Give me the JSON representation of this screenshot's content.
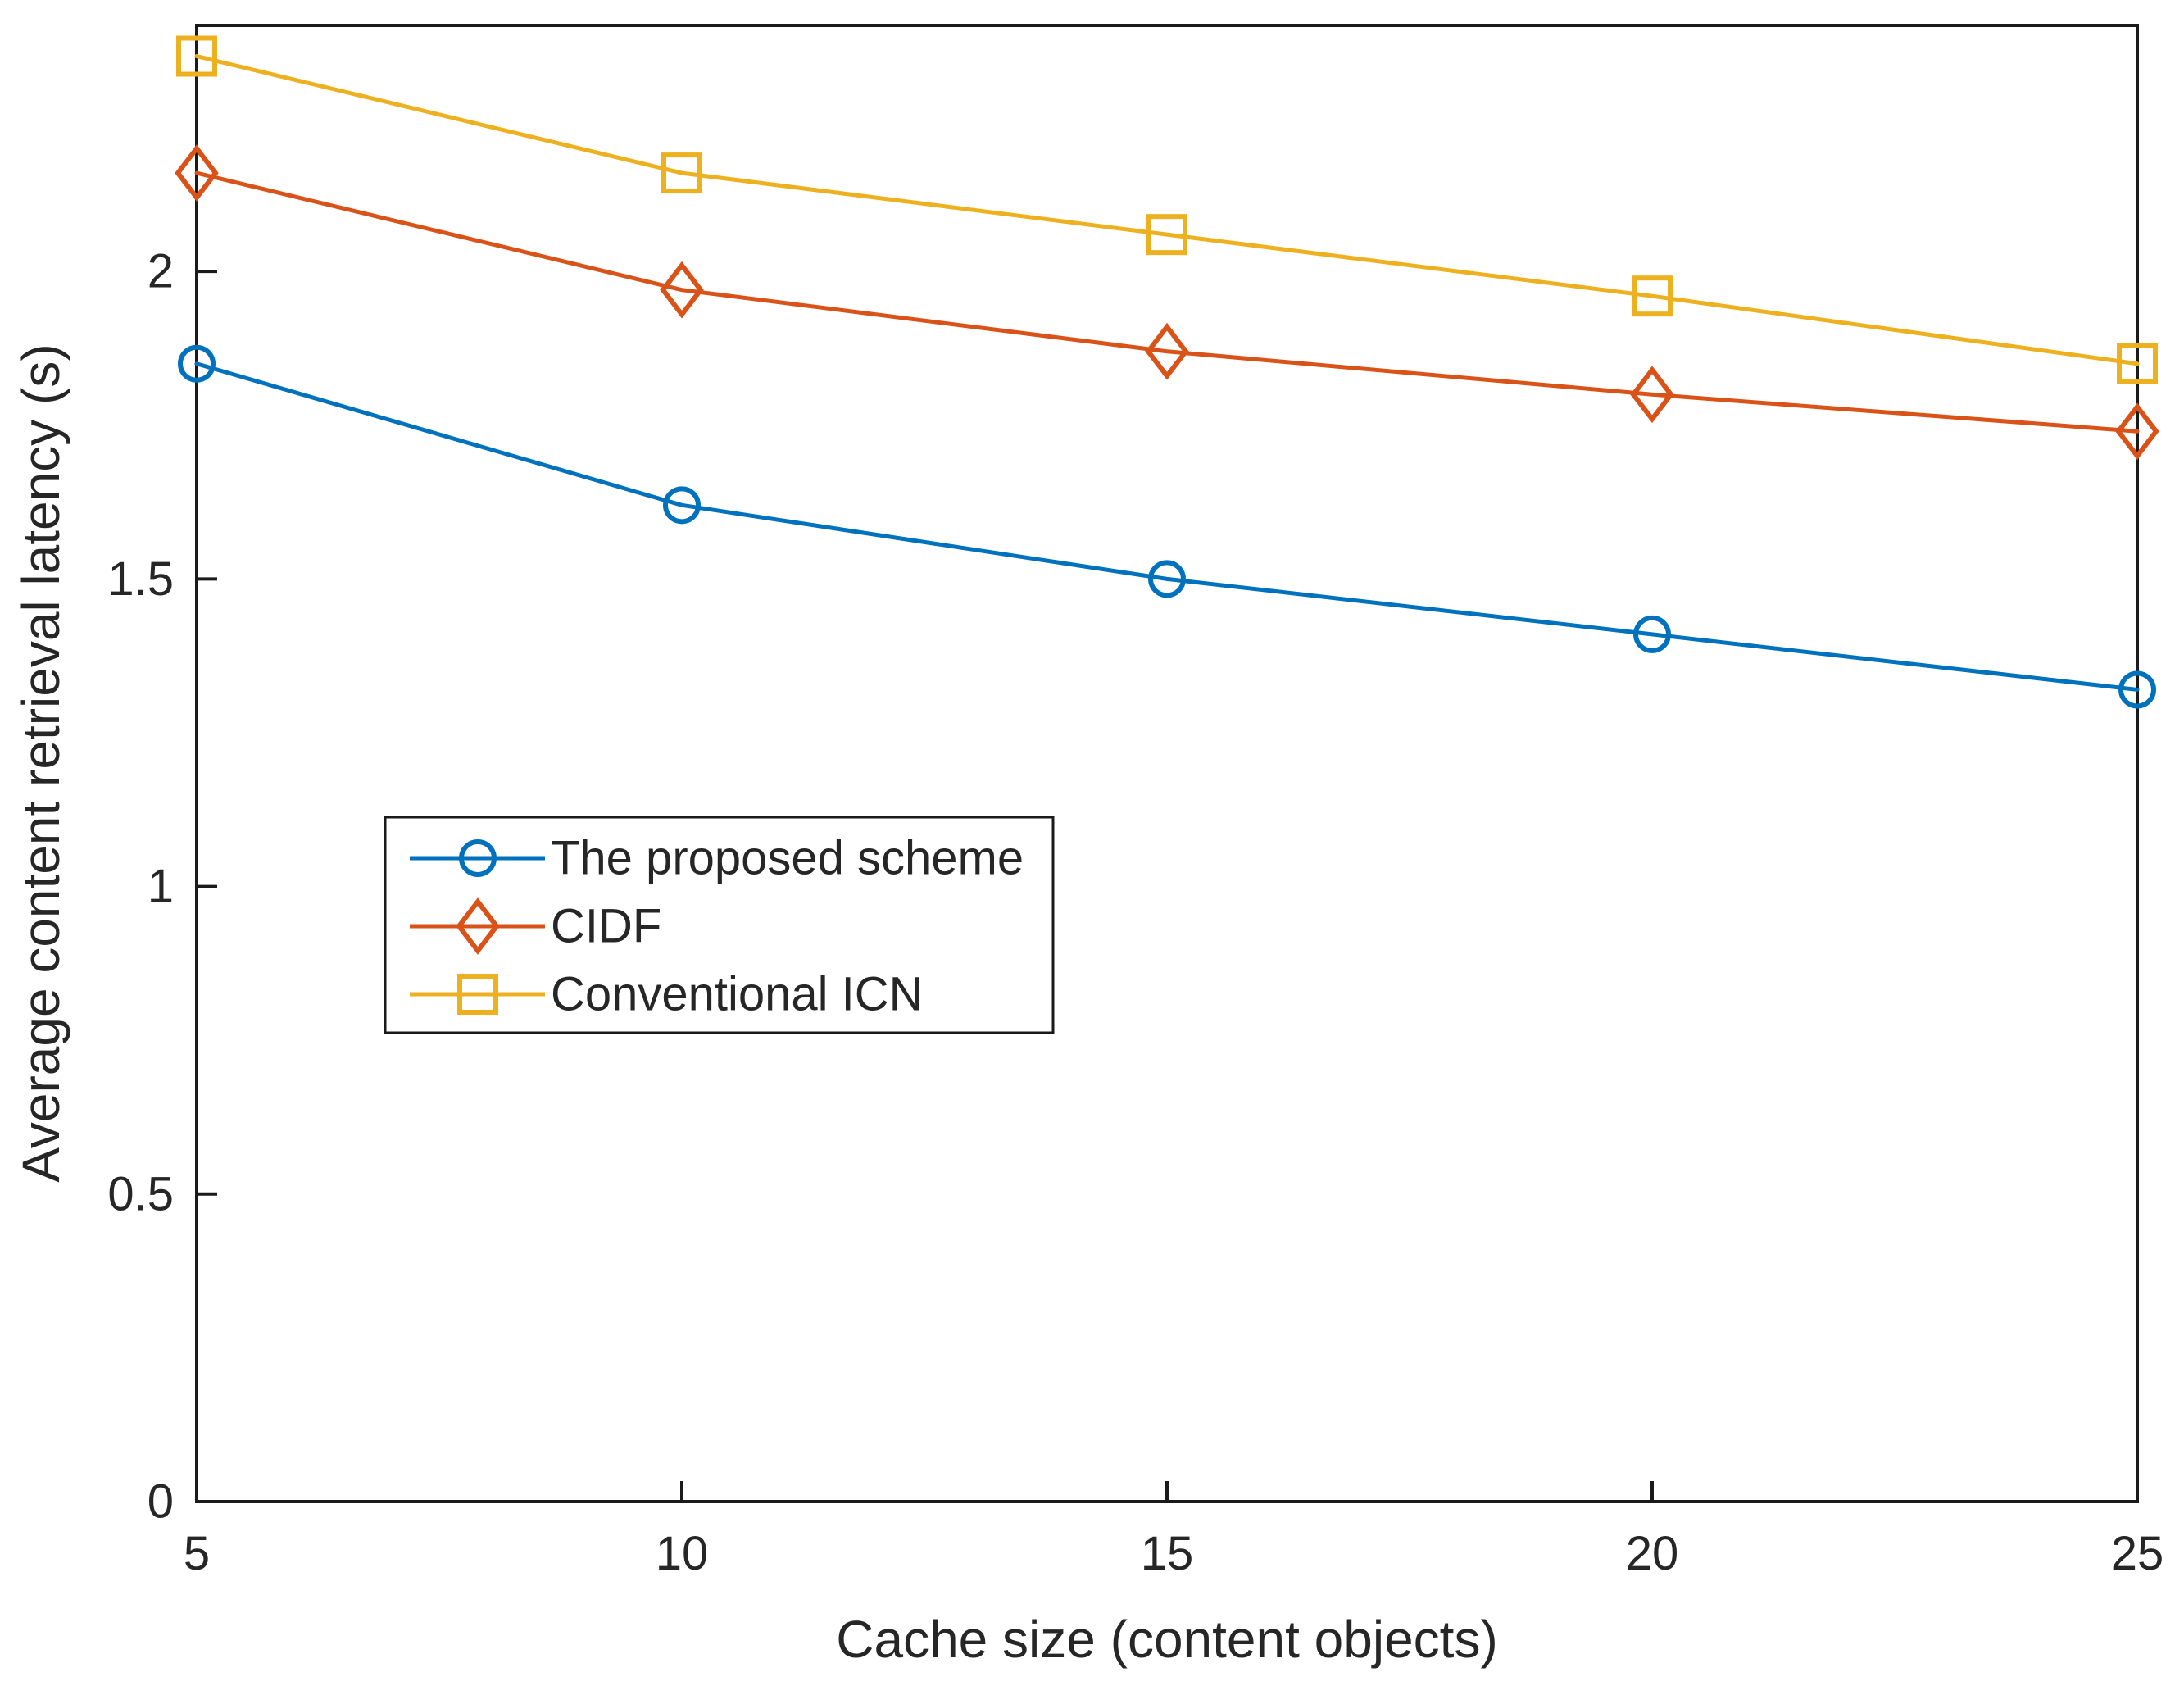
{
  "figure": {
    "background": "#ffffff",
    "axis_color": "#1a1a1a",
    "text_color": "#262626"
  },
  "chart_data": {
    "type": "line",
    "title": "",
    "xlabel": "Cache size (content objects)",
    "ylabel": "Average content retrieval latency (s)",
    "x": [
      5,
      10,
      15,
      20,
      25
    ],
    "xlim": [
      5,
      25
    ],
    "ylim": [
      0,
      2.4
    ],
    "xticks": [
      5,
      10,
      15,
      20,
      25
    ],
    "yticks": [
      0,
      0.5,
      1,
      1.5,
      2
    ],
    "grid": false,
    "legend_position": "inside-middle-left",
    "series": [
      {
        "name": "The proposed scheme",
        "marker": "circle",
        "color": "#0072BD",
        "values": [
          1.85,
          1.62,
          1.5,
          1.41,
          1.32
        ]
      },
      {
        "name": "CIDF",
        "marker": "diamond",
        "color": "#D95319",
        "values": [
          2.16,
          1.97,
          1.87,
          1.8,
          1.74
        ]
      },
      {
        "name": "Conventional ICN",
        "marker": "square",
        "color": "#EDB120",
        "values": [
          2.35,
          2.16,
          2.06,
          1.96,
          1.85
        ]
      }
    ]
  }
}
